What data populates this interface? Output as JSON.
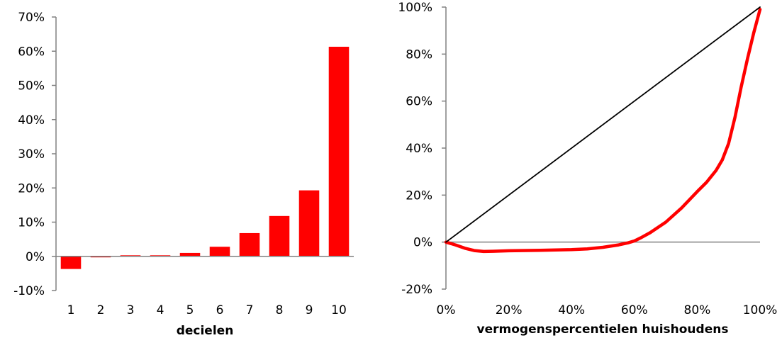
{
  "chart_data": [
    {
      "type": "bar",
      "title": "",
      "xlabel": "decielen",
      "ylabel": "",
      "categories": [
        "1",
        "2",
        "3",
        "4",
        "5",
        "6",
        "7",
        "8",
        "9",
        "10"
      ],
      "values": [
        -3.7,
        -0.3,
        0.3,
        0.3,
        1.0,
        2.8,
        6.8,
        11.8,
        19.3,
        61.3
      ],
      "ylim": [
        -10,
        70
      ],
      "yticks": [
        -10,
        0,
        10,
        20,
        30,
        40,
        50,
        60,
        70
      ],
      "ytick_labels": [
        "-10%",
        "0%",
        "10%",
        "20%",
        "30%",
        "40%",
        "50%",
        "60%",
        "70%"
      ],
      "grid": false,
      "bar_color": "#ff0000"
    },
    {
      "type": "line",
      "title": "",
      "xlabel": "vermogenspercentielen huishoudens",
      "ylabel": "",
      "xlim": [
        0,
        100
      ],
      "ylim": [
        -20,
        100
      ],
      "xticks": [
        0,
        20,
        40,
        60,
        80,
        100
      ],
      "xtick_labels": [
        "0%",
        "20%",
        "40%",
        "60%",
        "80%",
        "100%"
      ],
      "yticks": [
        -20,
        0,
        20,
        40,
        60,
        80,
        100
      ],
      "ytick_labels": [
        "-20%",
        "0%",
        "20%",
        "40%",
        "60%",
        "80%",
        "100%"
      ],
      "grid": false,
      "series": [
        {
          "color": "#ff0000",
          "x": [
            0,
            3,
            6,
            9,
            12,
            15,
            20,
            30,
            40,
            45,
            50,
            55,
            58,
            60,
            62,
            65,
            70,
            75,
            80,
            83,
            86,
            88,
            90,
            92,
            94,
            96,
            98,
            100
          ],
          "y": [
            0,
            -1.2,
            -2.6,
            -3.6,
            -4.0,
            -3.9,
            -3.7,
            -3.5,
            -3.2,
            -2.9,
            -2.2,
            -1.2,
            -0.3,
            0.5,
            1.8,
            4.0,
            8.5,
            14.5,
            21.5,
            25.5,
            30.5,
            35.0,
            42.0,
            53.0,
            66.0,
            78.0,
            89.0,
            99.0
          ]
        },
        {
          "color": "#000000",
          "x": [
            0,
            100
          ],
          "y": [
            0,
            100
          ]
        }
      ]
    }
  ]
}
